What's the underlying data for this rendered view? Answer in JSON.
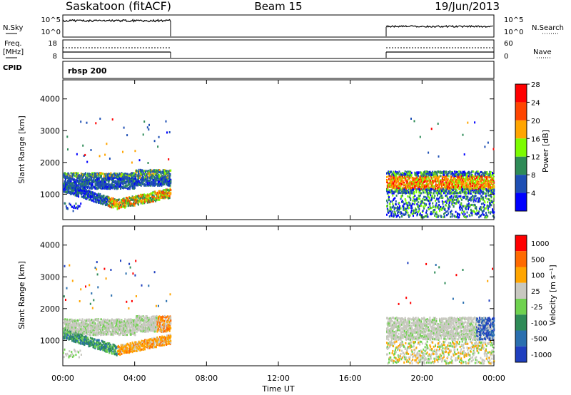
{
  "header": {
    "station": "Saskatoon (fitACF)",
    "beam": "Beam 15",
    "date": "19/Jun/2013"
  },
  "top_panels": {
    "nsky_label": "N.Sky",
    "nsearch_label": "N.Search",
    "freq_label_line1": "Freq.",
    "freq_label_line2": "[MHz]",
    "nave_label": "Nave",
    "cpid_label": "CPID",
    "cpid_value": "rbsp 200",
    "noise_ticks_left": [
      "10^5",
      "10^0"
    ],
    "noise_ticks_right": [
      "10^5",
      "10^0"
    ],
    "freq_ticks_left": [
      "18",
      "8"
    ],
    "nave_ticks_right": [
      "60",
      "0"
    ]
  },
  "chart_data": [
    {
      "type": "heatmap",
      "panel": "power",
      "ylabel": "Slant Range [km]",
      "yticks": [
        1000,
        2000,
        3000,
        4000
      ],
      "ylim": [
        200,
        4600
      ],
      "xlim_hours": [
        0,
        24
      ],
      "colorbar_label": "Power [dB]",
      "colorbar_ticks": [
        "4",
        "8",
        "12",
        "16",
        "20",
        "24",
        "28"
      ],
      "colorbar_colors": [
        "#0000ff",
        "#1e4fb4",
        "#2e8b57",
        "#7cfc00",
        "#ffa500",
        "#ff4500",
        "#ff0000"
      ],
      "data_windows_hours": [
        [
          0,
          6
        ],
        [
          18,
          24
        ]
      ]
    },
    {
      "type": "heatmap",
      "panel": "velocity",
      "ylabel": "Slant Range [km]",
      "yticks": [
        1000,
        2000,
        3000,
        4000
      ],
      "ylim": [
        200,
        4600
      ],
      "xlim_hours": [
        0,
        24
      ],
      "colorbar_label": "Velocity [m s⁻¹]",
      "colorbar_ticks": [
        "1000",
        "500",
        "100",
        "25",
        "-25",
        "-100",
        "-500",
        "-1000"
      ],
      "colorbar_colors": [
        "#1f3fbf",
        "#2a6faf",
        "#2e8b57",
        "#6fd24f",
        "#c8c8c0",
        "#ffa500",
        "#ff6a00",
        "#ff0000"
      ],
      "data_windows_hours": [
        [
          0,
          6
        ],
        [
          18,
          24
        ]
      ]
    }
  ],
  "xaxis": {
    "label": "Time UT",
    "ticks": [
      "00:00",
      "04:00",
      "08:00",
      "12:00",
      "16:00",
      "20:00",
      "00:00"
    ]
  }
}
